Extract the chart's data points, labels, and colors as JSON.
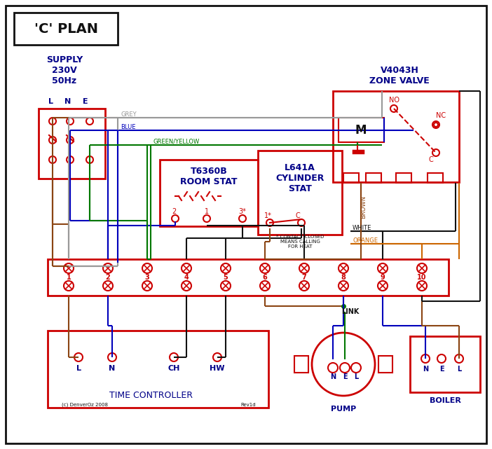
{
  "red": "#cc0000",
  "blue": "#0000bb",
  "green": "#007700",
  "brown": "#8B4513",
  "grey": "#999999",
  "orange": "#cc6600",
  "black": "#111111",
  "dark_blue": "#000088",
  "title": "'C' PLAN",
  "supply_text": "SUPPLY\n230V\n50Hz",
  "zone_valve_text": "V4043H\nZONE VALVE",
  "room_stat_text": "T6360B\nROOM STAT",
  "cyl_stat_text": "L641A\nCYLINDER\nSTAT",
  "time_ctrl_text": "TIME CONTROLLER",
  "pump_text": "PUMP",
  "boiler_text": "BOILER",
  "link_text": "LINK",
  "copyright": "(c) DenverOz 2008",
  "rev": "Rev1d"
}
